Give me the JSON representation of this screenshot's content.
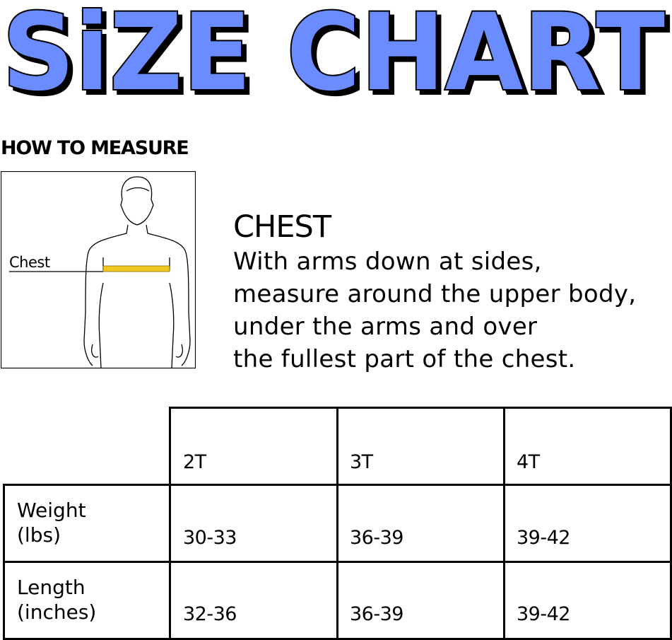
{
  "title": "SiZE CHART",
  "colors": {
    "title_fill": "#6b8cff",
    "title_outline": "#000000",
    "tape": "#f2c81e"
  },
  "how_to_measure": {
    "heading": "HOW TO MEASURE",
    "figure_label": "Chest",
    "measure_name": "CHEST",
    "instructions": [
      "With arms down at sides,",
      "measure around the upper body,",
      "under the arms and over",
      "the fullest part of the chest."
    ]
  },
  "table": {
    "columns": [
      "2T",
      "3T",
      "4T"
    ],
    "rows": [
      {
        "label_line1": "Weight",
        "label_line2": "(lbs)",
        "values": [
          "30-33",
          "36-39",
          "39-42"
        ]
      },
      {
        "label_line1": "Length",
        "label_line2": "(inches)",
        "values": [
          "32-36",
          "36-39",
          "39-42"
        ]
      }
    ]
  }
}
